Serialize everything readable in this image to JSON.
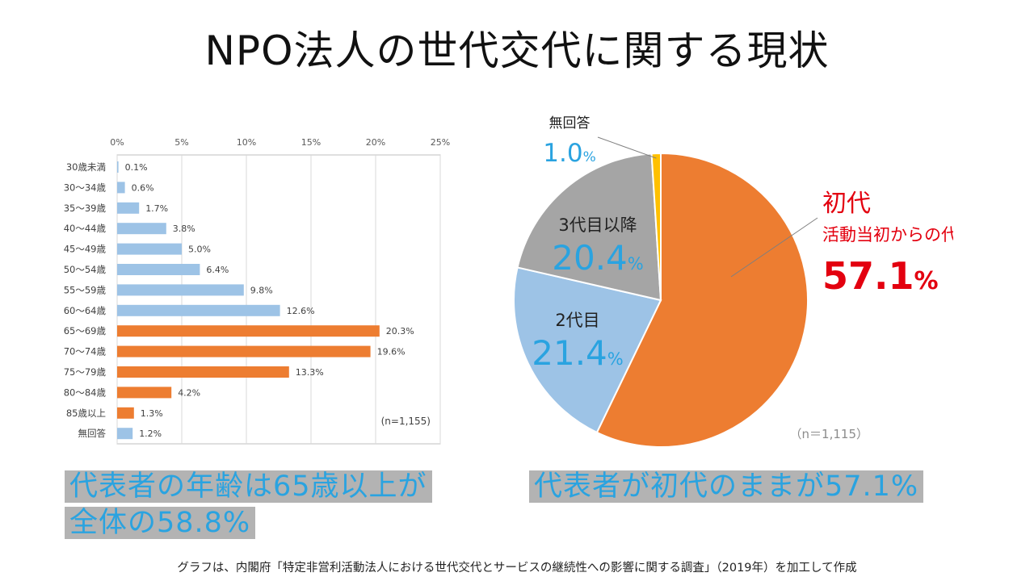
{
  "title": "NPO法人の世代交代に関する現状",
  "colors": {
    "blue": "#9dc3e6",
    "orange": "#ed7d31",
    "gray": "#a5a5a5",
    "yellow": "#ffc000",
    "accent_blue": "#2aa3e0",
    "red": "#e3000f"
  },
  "chart_data": [
    {
      "type": "bar",
      "orientation": "horizontal",
      "x_ticks": [
        "0%",
        "5%",
        "10%",
        "15%",
        "20%",
        "25%"
      ],
      "xlim": [
        0,
        25
      ],
      "grid": true,
      "categories": [
        "30歳未満",
        "30～34歳",
        "35～39歳",
        "40～44歳",
        "45～49歳",
        "50～54歳",
        "55～59歳",
        "60～64歳",
        "65～69歳",
        "70～74歳",
        "75～79歳",
        "80～84歳",
        "85歳以上",
        "無回答"
      ],
      "values": [
        0.1,
        0.6,
        1.7,
        3.8,
        5.0,
        6.4,
        9.8,
        12.6,
        20.3,
        19.6,
        13.3,
        4.2,
        1.3,
        1.2
      ],
      "value_labels": [
        "0.1%",
        "0.6%",
        "1.7%",
        "3.8%",
        "5.0%",
        "6.4%",
        "9.8%",
        "12.6%",
        "20.3%",
        "19.6%",
        "13.3%",
        "4.2%",
        "1.3%",
        "1.2%"
      ],
      "bar_colors": [
        "blue",
        "blue",
        "blue",
        "blue",
        "blue",
        "blue",
        "blue",
        "blue",
        "orange",
        "orange",
        "orange",
        "orange",
        "orange",
        "blue"
      ],
      "note": "(n=1,155)"
    },
    {
      "type": "pie",
      "slices": [
        {
          "name": "初代",
          "sub": "活動当初からの代表者",
          "value": 57.1,
          "number": "57.1",
          "unit": "%",
          "color": "orange"
        },
        {
          "name": "2代目",
          "value": 21.4,
          "number": "21.4",
          "unit": "%",
          "color": "blue"
        },
        {
          "name": "3代目以降",
          "value": 20.4,
          "number": "20.4",
          "unit": "%",
          "color": "gray"
        },
        {
          "name": "無回答",
          "value": 1.0,
          "number": "1.0",
          "unit": "%",
          "color": "yellow"
        }
      ],
      "note": "（n＝1,115）"
    }
  ],
  "callouts": {
    "left_line1": "代表者の年齢は65歳以上が",
    "left_line2": "全体の58.8%",
    "right": "代表者が初代のままが57.1%"
  },
  "footer": "グラフは、内閣府「特定非営利活動法人における世代交代とサービスの継続性への影響に関する調査」（2019年）を加工して作成"
}
